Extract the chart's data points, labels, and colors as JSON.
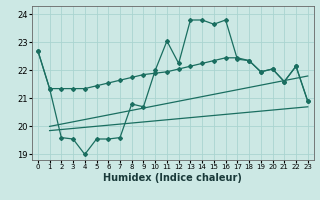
{
  "xlabel": "Humidex (Indice chaleur)",
  "background_color": "#cce8e4",
  "grid_color": "#aad4d0",
  "line_color": "#1a6e60",
  "xlim": [
    -0.5,
    23.5
  ],
  "ylim": [
    18.8,
    24.3
  ],
  "yticks": [
    19,
    20,
    21,
    22,
    23,
    24
  ],
  "xticks": [
    0,
    1,
    2,
    3,
    4,
    5,
    6,
    7,
    8,
    9,
    10,
    11,
    12,
    13,
    14,
    15,
    16,
    17,
    18,
    19,
    20,
    21,
    22,
    23
  ],
  "line1_x": [
    0,
    1,
    2,
    3,
    4,
    5,
    6,
    7,
    8,
    9,
    10,
    11,
    12,
    13,
    14,
    15,
    16,
    17,
    18,
    19,
    20,
    21,
    22,
    23
  ],
  "line1_y": [
    22.7,
    21.35,
    21.35,
    21.35,
    21.35,
    21.45,
    21.55,
    21.65,
    21.75,
    21.85,
    21.9,
    21.95,
    22.05,
    22.15,
    22.25,
    22.35,
    22.45,
    22.45,
    22.35,
    21.95,
    22.05,
    21.6,
    22.15,
    20.9
  ],
  "line2_x": [
    0,
    1,
    2,
    3,
    4,
    5,
    6,
    7,
    8,
    9,
    10,
    11,
    12,
    13,
    14,
    15,
    16,
    17,
    18,
    19,
    20,
    21,
    22,
    23
  ],
  "line2_y": [
    22.7,
    21.35,
    19.6,
    19.55,
    19.0,
    19.55,
    19.55,
    19.6,
    20.8,
    20.7,
    22.0,
    23.05,
    22.25,
    23.8,
    23.8,
    23.65,
    23.8,
    22.4,
    22.35,
    21.95,
    22.05,
    21.6,
    22.15,
    20.9
  ],
  "line3_x": [
    1,
    23
  ],
  "line3_y": [
    20.0,
    21.8
  ],
  "line4_x": [
    1,
    23
  ],
  "line4_y": [
    19.85,
    20.7
  ]
}
